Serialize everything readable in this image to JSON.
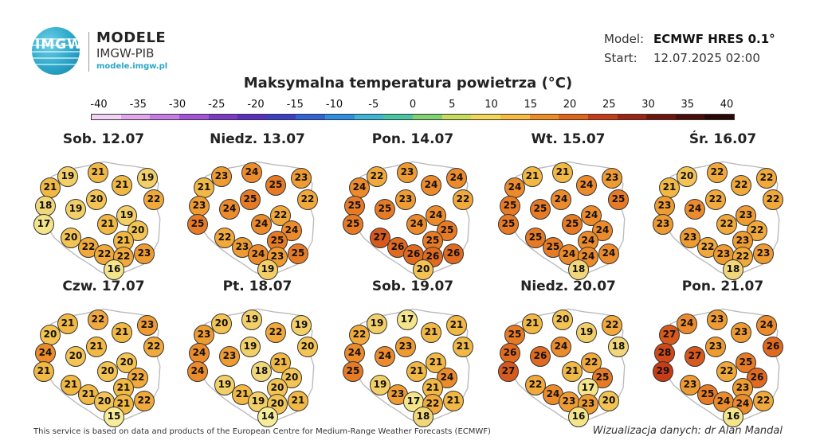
{
  "header": {
    "logo_text": "IMGW",
    "brand_title": "MODELE",
    "brand_subtitle": "IMGW-PIB",
    "brand_url": "modele.imgw.pl"
  },
  "meta": {
    "model_label": "Model:",
    "model_value": "ECMWF HRES 0.1°",
    "start_label": "Start:",
    "start_value": "12.07.2025 02:00"
  },
  "title": "Maksymalna temperatura powietrza (°C)",
  "scale": {
    "labels": [
      "-40",
      "-35",
      "-30",
      "-25",
      "-20",
      "-15",
      "-10",
      "-5",
      "0",
      "5",
      "10",
      "15",
      "20",
      "25",
      "30",
      "35",
      "40"
    ],
    "colors": [
      "#f2d3f5",
      "#e2a6ee",
      "#c77be6",
      "#a453d8",
      "#7d38c8",
      "#5a2ec0",
      "#3b3ec9",
      "#2e63da",
      "#2c8fe4",
      "#3cb6d8",
      "#47c6a3",
      "#7fd36e",
      "#c8dc5a",
      "#f1d753",
      "#f6bb3c",
      "#f08d22",
      "#e2641a",
      "#c73c16",
      "#9c2410",
      "#6e160c",
      "#4a0e0a",
      "#2a0806"
    ]
  },
  "panels": [
    {
      "day": "Sob. 12.07",
      "values": [
        21,
        19,
        21,
        19,
        21,
        20,
        22,
        18,
        19,
        19,
        17,
        20,
        21,
        20,
        22,
        21,
        22,
        22,
        23,
        16
      ]
    },
    {
      "day": "Niedz. 13.07",
      "values": [
        21,
        23,
        24,
        23,
        25,
        25,
        22,
        23,
        24,
        22,
        25,
        22,
        24,
        24,
        23,
        25,
        24,
        23,
        25,
        19
      ]
    },
    {
      "day": "Pon. 14.07",
      "values": [
        24,
        22,
        23,
        24,
        24,
        23,
        22,
        25,
        25,
        24,
        25,
        27,
        24,
        25,
        26,
        25,
        26,
        26,
        26,
        20
      ]
    },
    {
      "day": "Wt. 15.07",
      "values": [
        24,
        21,
        21,
        23,
        24,
        24,
        25,
        25,
        25,
        24,
        25,
        25,
        25,
        24,
        25,
        24,
        24,
        24,
        24,
        18
      ]
    },
    {
      "day": "Śr. 16.07",
      "values": [
        21,
        20,
        22,
        22,
        22,
        22,
        22,
        23,
        24,
        23,
        23,
        23,
        22,
        22,
        22,
        23,
        23,
        22,
        23,
        18
      ]
    },
    {
      "day": "Czw. 17.07",
      "values": [
        20,
        21,
        22,
        23,
        21,
        21,
        22,
        24,
        20,
        20,
        21,
        21,
        20,
        22,
        21,
        21,
        20,
        21,
        22,
        15
      ]
    },
    {
      "day": "Pt. 18.07",
      "values": [
        23,
        20,
        19,
        19,
        22,
        19,
        20,
        24,
        23,
        21,
        24,
        19,
        18,
        20,
        21,
        20,
        19,
        20,
        21,
        14
      ]
    },
    {
      "day": "Sob. 19.07",
      "values": [
        22,
        19,
        17,
        21,
        21,
        23,
        21,
        24,
        24,
        21,
        25,
        19,
        21,
        24,
        23,
        21,
        17,
        22,
        21,
        18
      ]
    },
    {
      "day": "Niedz. 20.07",
      "values": [
        25,
        21,
        20,
        22,
        19,
        24,
        18,
        26,
        26,
        22,
        27,
        22,
        21,
        25,
        24,
        17,
        23,
        23,
        20,
        16
      ]
    },
    {
      "day": "Pon. 21.07",
      "values": [
        27,
        24,
        23,
        24,
        23,
        23,
        26,
        28,
        27,
        25,
        29,
        23,
        22,
        26,
        25,
        23,
        24,
        24,
        22,
        16
      ]
    }
  ],
  "footer": {
    "left": "This service is based on data and products of the European Centre for Medium-Range Weather Forecasts (ECMWF)",
    "right": "Wizualizacja danych: dr Alan Mandal"
  }
}
